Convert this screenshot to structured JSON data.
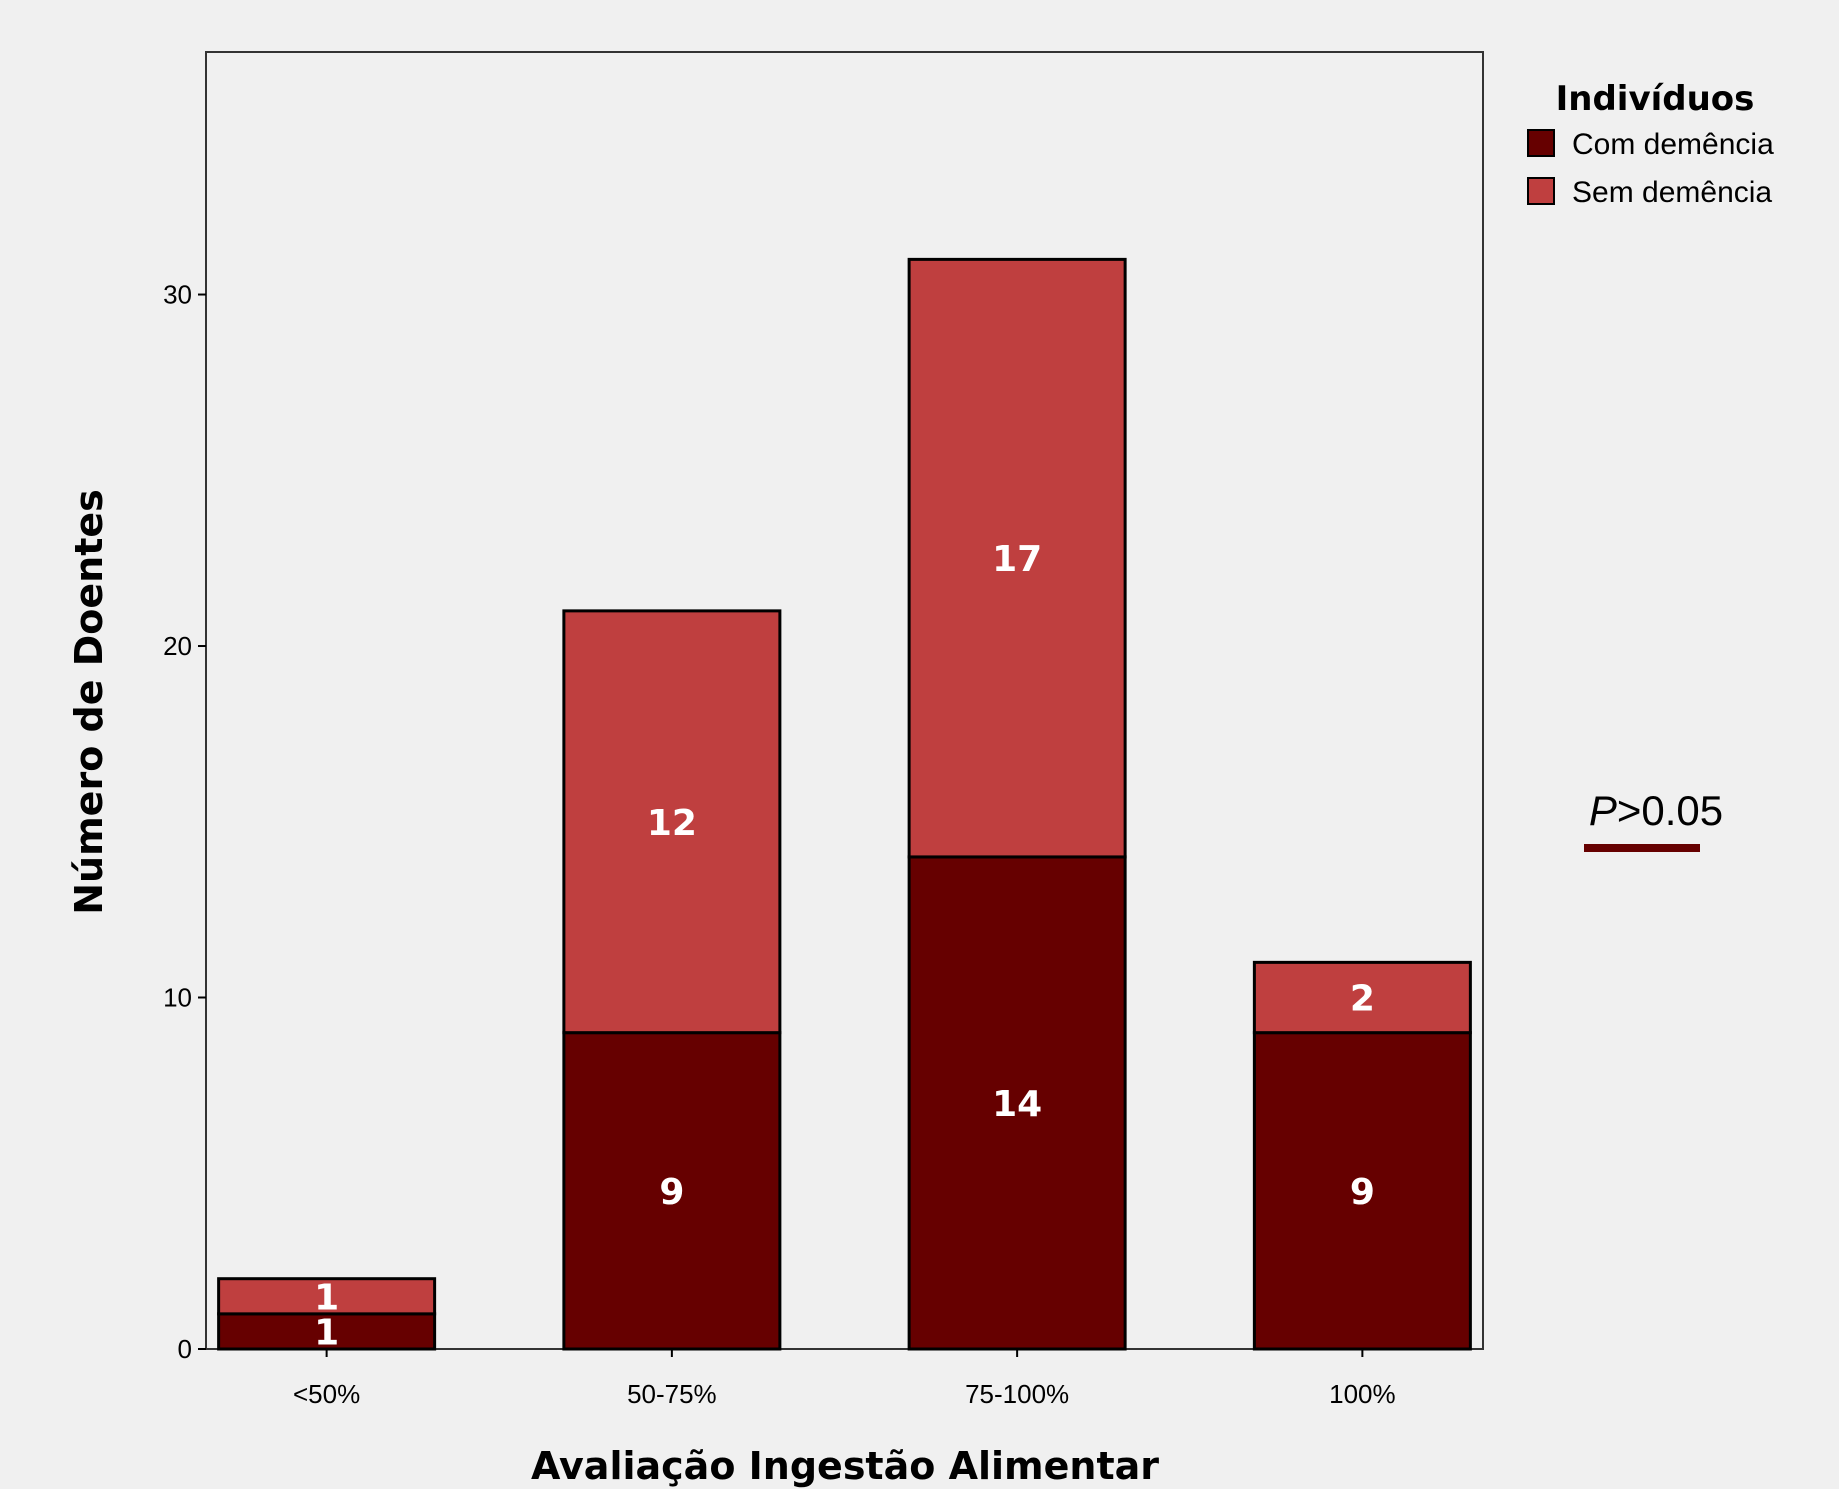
{
  "chart_data": {
    "type": "bar",
    "stacked": true,
    "categories": [
      "<50%",
      "50-75%",
      "75-100%",
      "100%"
    ],
    "series": [
      {
        "name": "Com demência",
        "values": [
          1,
          9,
          14,
          9
        ],
        "color": "#660000"
      },
      {
        "name": "Sem demência",
        "values": [
          1,
          12,
          17,
          2
        ],
        "color": "#bf3f3f"
      }
    ],
    "xlabel": "Avaliação Ingestão Alimentar",
    "ylabel": "Número de Doentes",
    "ylim": [
      0,
      36.9
    ],
    "yticks": [
      0,
      10,
      20,
      30
    ],
    "legend": {
      "title": "Indivíduos",
      "placement": "top-right outside"
    },
    "annotation": {
      "italic": "P",
      "text": ">0.05",
      "underline_color": "#660000"
    },
    "grid": false,
    "plot_background": "#f0f0f0"
  }
}
